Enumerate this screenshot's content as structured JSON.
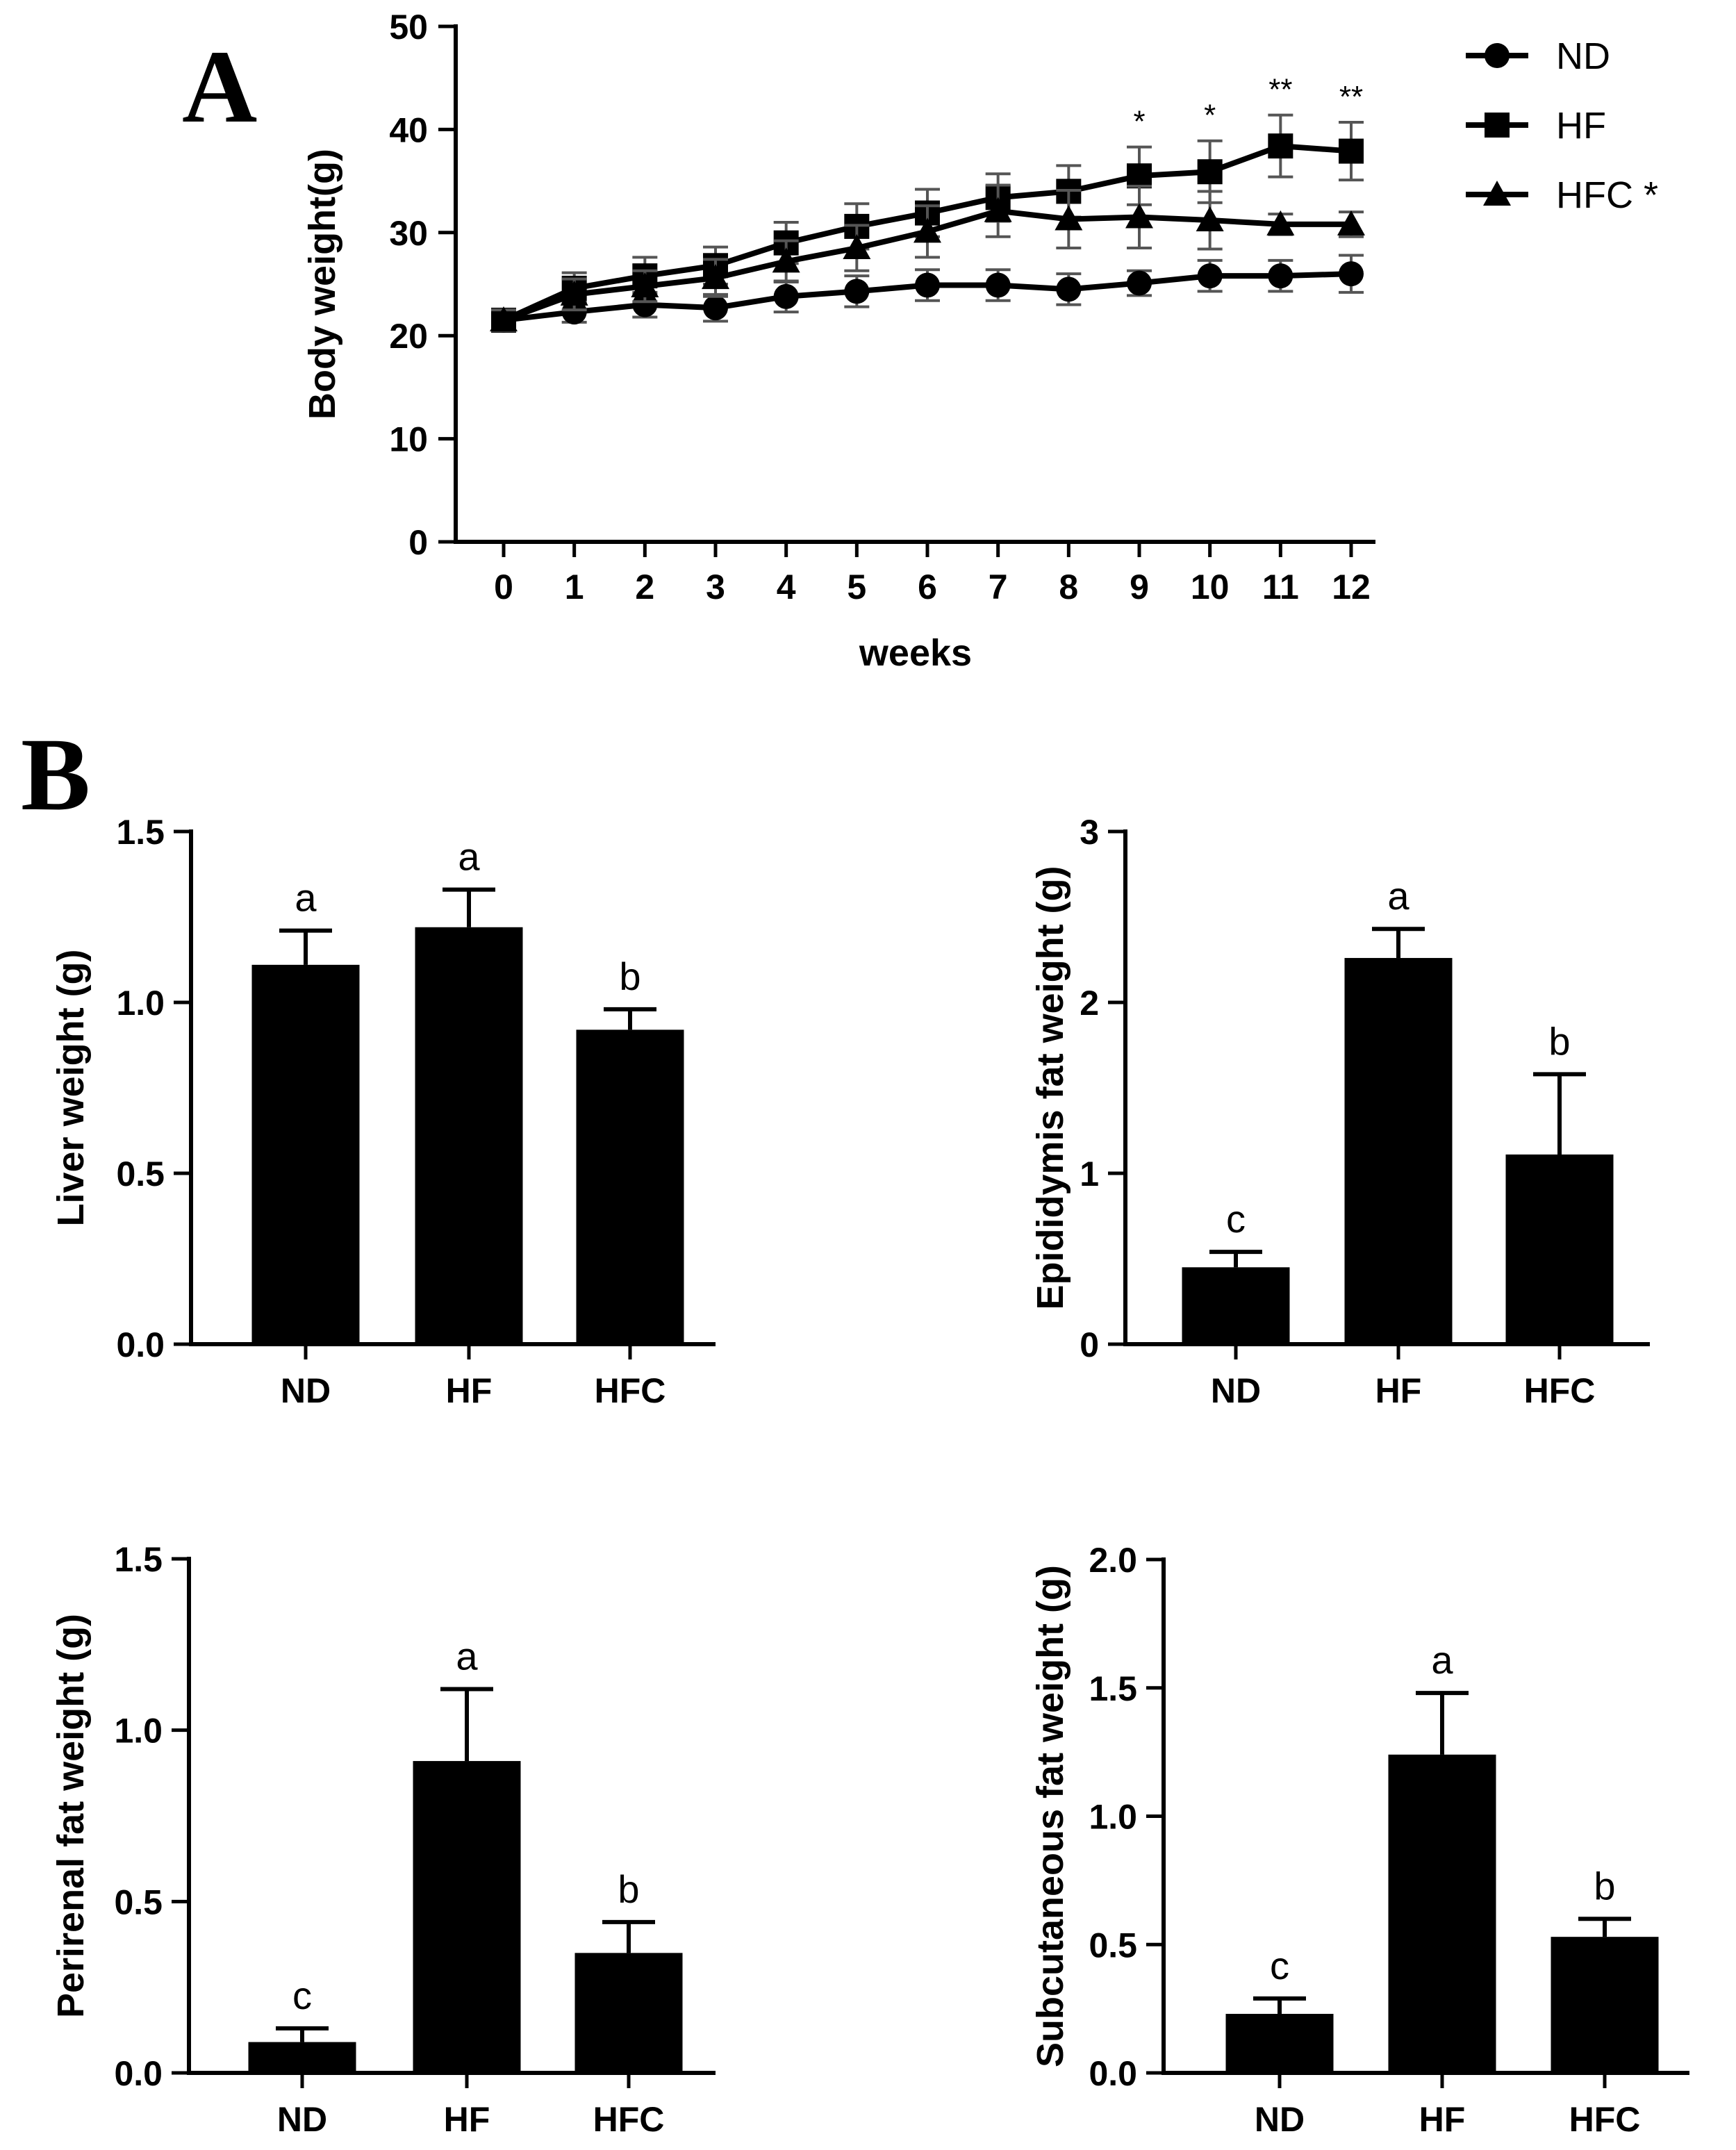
{
  "chart_data": [
    {
      "id": "A",
      "panel_label": "A",
      "type": "line",
      "xlabel": "weeks",
      "ylabel": "Body weight(g)",
      "x": [
        0,
        1,
        2,
        3,
        4,
        5,
        6,
        7,
        8,
        9,
        10,
        11,
        12
      ],
      "xtick_labels": [
        "0",
        "1",
        "2",
        "3",
        "4",
        "5",
        "6",
        "7",
        "8",
        "9",
        "10",
        "11",
        "12"
      ],
      "ylim": [
        0,
        50
      ],
      "yticks": [
        0,
        10,
        20,
        30,
        40,
        50
      ],
      "ytick_labels": [
        "0",
        "10",
        "20",
        "30",
        "40",
        "50"
      ],
      "series": [
        {
          "name": "ND",
          "legend": "ND",
          "marker": "circle",
          "values": [
            21.5,
            22.3,
            23.0,
            22.7,
            23.8,
            24.3,
            24.9,
            24.9,
            24.5,
            25.1,
            25.8,
            25.8,
            26.0
          ],
          "errors": [
            1.0,
            1.0,
            1.2,
            1.3,
            1.5,
            1.5,
            1.5,
            1.5,
            1.5,
            1.2,
            1.5,
            1.5,
            1.8
          ]
        },
        {
          "name": "HF",
          "legend": "HF",
          "marker": "square",
          "values": [
            21.5,
            24.6,
            25.8,
            26.8,
            29.0,
            30.6,
            31.9,
            33.4,
            34.0,
            35.5,
            35.9,
            38.4,
            37.9
          ],
          "errors": [
            1.0,
            1.5,
            1.8,
            1.8,
            2.0,
            2.2,
            2.3,
            2.3,
            2.5,
            2.8,
            3.0,
            3.0,
            2.8
          ]
        },
        {
          "name": "HFC",
          "legend": "HFC *",
          "marker": "triangle",
          "values": [
            21.5,
            24.0,
            24.8,
            25.6,
            27.2,
            28.5,
            30.1,
            32.1,
            31.3,
            31.5,
            31.2,
            30.8,
            30.8
          ],
          "errors": [
            1.0,
            1.5,
            1.5,
            1.8,
            2.0,
            2.2,
            2.5,
            2.5,
            2.8,
            3.0,
            2.8,
            1.0,
            1.2
          ]
        }
      ],
      "annotations": [
        {
          "x": 9,
          "text": "*"
        },
        {
          "x": 10,
          "text": "*"
        },
        {
          "x": 11,
          "text": "**"
        },
        {
          "x": 12,
          "text": "**"
        }
      ],
      "legend_position": "top-right"
    },
    {
      "id": "B1",
      "panel_label": "B",
      "type": "bar",
      "ylabel": "Liver weight (g)",
      "categories": [
        "ND",
        "HF",
        "HFC"
      ],
      "values": [
        1.11,
        1.22,
        0.92
      ],
      "errors": [
        0.1,
        0.11,
        0.06
      ],
      "letters": [
        "a",
        "a",
        "b"
      ],
      "ylim": [
        0,
        1.5
      ],
      "yticks": [
        0,
        0.5,
        1.0,
        1.5
      ],
      "ytick_labels": [
        "0.0",
        "0.5",
        "1.0",
        "1.5"
      ]
    },
    {
      "id": "B2",
      "type": "bar",
      "ylabel": "Epididymis fat weight (g)",
      "categories": [
        "ND",
        "HF",
        "HFC"
      ],
      "values": [
        0.45,
        2.26,
        1.11
      ],
      "errors": [
        0.09,
        0.17,
        0.47
      ],
      "letters": [
        "c",
        "a",
        "b"
      ],
      "ylim": [
        0,
        3
      ],
      "yticks": [
        0,
        1,
        2,
        3
      ],
      "ytick_labels": [
        "0",
        "1",
        "2",
        "3"
      ]
    },
    {
      "id": "B3",
      "type": "bar",
      "ylabel": "Perirenal fat weight (g)",
      "categories": [
        "ND",
        "HF",
        "HFC"
      ],
      "values": [
        0.09,
        0.91,
        0.35
      ],
      "errors": [
        0.04,
        0.21,
        0.09
      ],
      "letters": [
        "c",
        "a",
        "b"
      ],
      "ylim": [
        0,
        1.5
      ],
      "yticks": [
        0,
        0.5,
        1.0,
        1.5
      ],
      "ytick_labels": [
        "0.0",
        "0.5",
        "1.0",
        "1.5"
      ]
    },
    {
      "id": "B4",
      "type": "bar",
      "ylabel": "Subcutaneous fat weight (g)",
      "categories": [
        "ND",
        "HF",
        "HFC"
      ],
      "values": [
        0.23,
        1.24,
        0.53
      ],
      "errors": [
        0.06,
        0.24,
        0.07
      ],
      "letters": [
        "c",
        "a",
        "b"
      ],
      "ylim": [
        0,
        2.0
      ],
      "yticks": [
        0,
        0.5,
        1.0,
        1.5,
        2.0
      ],
      "ytick_labels": [
        "0.0",
        "0.5",
        "1.0",
        "1.5",
        "2.0"
      ]
    }
  ]
}
